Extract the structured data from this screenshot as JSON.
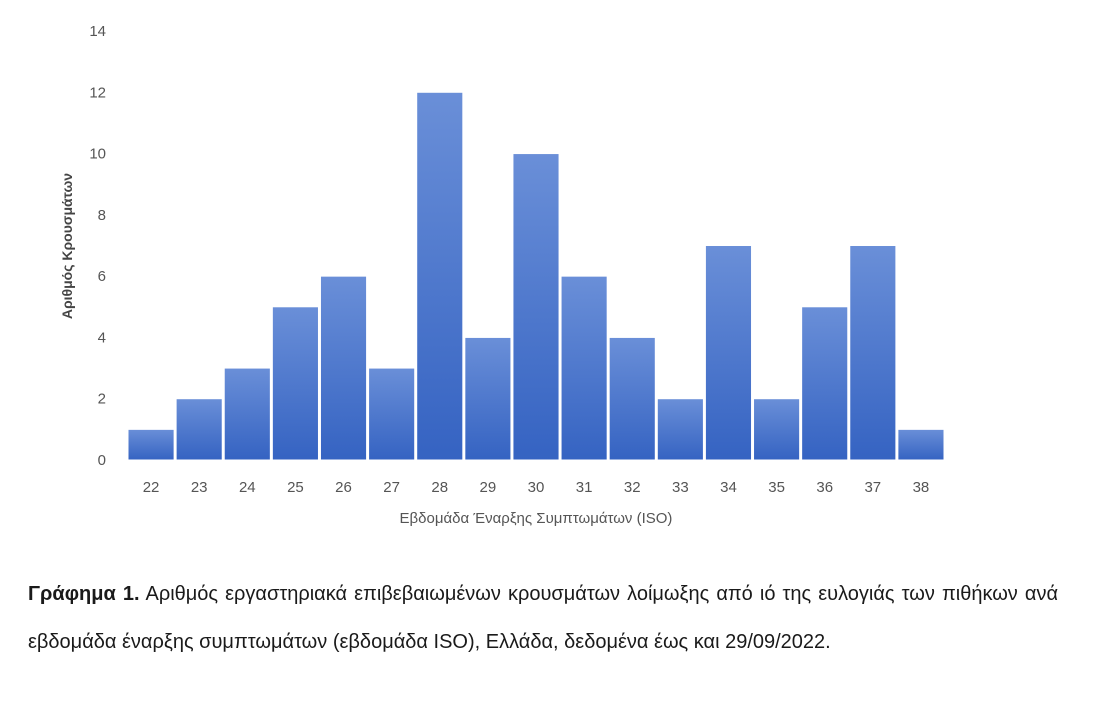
{
  "chart_data": {
    "type": "bar",
    "categories": [
      "22",
      "23",
      "24",
      "25",
      "26",
      "27",
      "28",
      "29",
      "30",
      "31",
      "32",
      "33",
      "34",
      "35",
      "36",
      "37",
      "38"
    ],
    "values": [
      1,
      2,
      3,
      5,
      6,
      3,
      12,
      4,
      10,
      6,
      4,
      2,
      7,
      2,
      5,
      7,
      1
    ],
    "xlabel": "Εβδομάδα Έναρξης Συμπτωμάτων (ISO)",
    "ylabel": "Αριθμός Κρουσμάτων",
    "ylim": [
      0,
      14
    ],
    "yticks": [
      "0",
      "2",
      "4",
      "6",
      "8",
      "10",
      "12",
      "14"
    ],
    "bar_color": "#4472c4",
    "grid": false
  },
  "caption": {
    "label": "Γράφημα 1.",
    "text": "Αριθμός εργαστηριακά επιβεβαιωμένων κρουσμάτων λοίμωξης από ιό της ευλογιάς των πιθήκων ανά εβδομάδα έναρξης συμπτωμάτων (εβδομάδα ISO), Ελλάδα, δεδομένα έως και 29/09/2022."
  }
}
